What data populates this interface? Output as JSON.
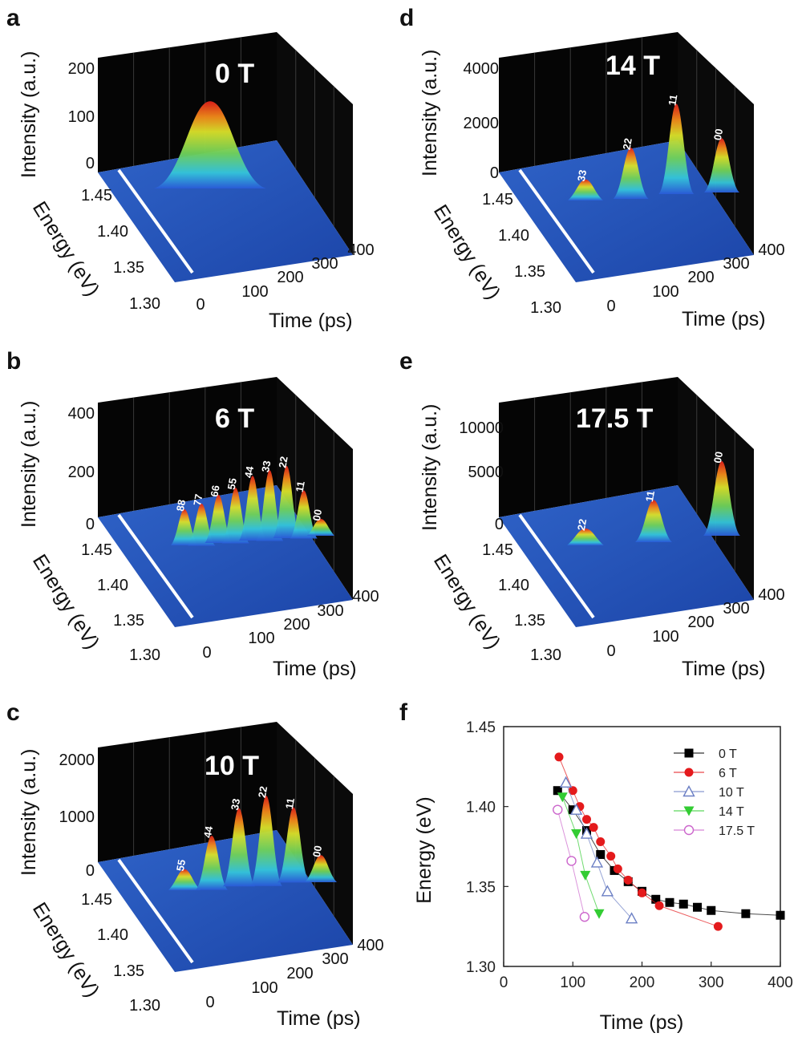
{
  "chart_data": [
    {
      "panel": "a",
      "type": "surface3d",
      "field_label": "0 T",
      "z_label": "Intensity (a.u.)",
      "y_label": "Energy (eV)",
      "x_label": "Time (ps)",
      "z_ticks": [
        "0",
        "100",
        "200"
      ],
      "y_ticks": [
        "1.45",
        "1.40",
        "1.35",
        "1.30"
      ],
      "x_ticks": [
        "0",
        "100",
        "200",
        "300",
        "400"
      ],
      "zlim": [
        0,
        200
      ],
      "peaks": [
        {
          "label": "",
          "time": 60,
          "energy": 1.41,
          "intensity": 125
        }
      ]
    },
    {
      "panel": "b",
      "type": "surface3d",
      "field_label": "6 T",
      "z_label": "Intensity (a.u.)",
      "y_label": "Energy (eV)",
      "x_label": "Time (ps)",
      "z_ticks": [
        "0",
        "200",
        "400"
      ],
      "y_ticks": [
        "1.45",
        "1.40",
        "1.35",
        "1.30"
      ],
      "x_ticks": [
        "0",
        "100",
        "200",
        "300",
        "400"
      ],
      "zlim": [
        0,
        400
      ],
      "peaks": [
        {
          "label": "88",
          "intensity": 80
        },
        {
          "label": "77",
          "intensity": 100
        },
        {
          "label": "66",
          "intensity": 120
        },
        {
          "label": "55",
          "intensity": 145
        },
        {
          "label": "44",
          "intensity": 175
        },
        {
          "label": "33",
          "intensity": 195
        },
        {
          "label": "22",
          "intensity": 200
        },
        {
          "label": "11",
          "intensity": 120
        },
        {
          "label": "00",
          "intensity": 12
        }
      ]
    },
    {
      "panel": "c",
      "type": "surface3d",
      "field_label": "10 T",
      "z_label": "Intensity (a.u.)",
      "y_label": "Energy (eV)",
      "x_label": "Time (ps)",
      "z_ticks": [
        "0",
        "1000",
        "2000"
      ],
      "y_ticks": [
        "1.45",
        "1.40",
        "1.35",
        "1.30"
      ],
      "x_ticks": [
        "0",
        "100",
        "200",
        "300",
        "400"
      ],
      "zlim": [
        0,
        2000
      ],
      "peaks": [
        {
          "label": "55",
          "intensity": 150
        },
        {
          "label": "44",
          "intensity": 700
        },
        {
          "label": "33",
          "intensity": 1100
        },
        {
          "label": "22",
          "intensity": 1300
        },
        {
          "label": "11",
          "intensity": 1050
        },
        {
          "label": "00",
          "intensity": 250
        }
      ]
    },
    {
      "panel": "d",
      "type": "surface3d",
      "field_label": "14 T",
      "z_label": "Intensity (a.u.)",
      "y_label": "Energy (eV)",
      "x_label": "Time (ps)",
      "z_ticks": [
        "0",
        "2000",
        "4000"
      ],
      "y_ticks": [
        "1.45",
        "1.40",
        "1.35",
        "1.30"
      ],
      "x_ticks": [
        "0",
        "100",
        "200",
        "300",
        "400"
      ],
      "zlim": [
        0,
        4000
      ],
      "peaks": [
        {
          "label": "33",
          "intensity": 300
        },
        {
          "label": "22",
          "intensity": 1300
        },
        {
          "label": "11",
          "intensity": 2600
        },
        {
          "label": "00",
          "intensity": 1400
        }
      ]
    },
    {
      "panel": "e",
      "type": "surface3d",
      "field_label": "17.5 T",
      "z_label": "Intensity (a.u.)",
      "y_label": "Energy (eV)",
      "x_label": "Time (ps)",
      "z_ticks": [
        "0",
        "5000",
        "10000"
      ],
      "y_ticks": [
        "1.45",
        "1.40",
        "1.35",
        "1.30"
      ],
      "x_ticks": [
        "0",
        "100",
        "200",
        "300",
        "400"
      ],
      "zlim": [
        0,
        10000
      ],
      "peaks": [
        {
          "label": "22",
          "intensity": 400
        },
        {
          "label": "11",
          "intensity": 2500
        },
        {
          "label": "00",
          "intensity": 5200
        }
      ]
    },
    {
      "panel": "f",
      "type": "scatter",
      "xlabel": "Time (ps)",
      "ylabel": "Energy (eV)",
      "xlim": [
        0,
        400
      ],
      "ylim": [
        1.3,
        1.45
      ],
      "x_ticks": [
        0,
        100,
        200,
        300,
        400
      ],
      "y_ticks": [
        1.3,
        1.35,
        1.4,
        1.45
      ],
      "y_tick_labels": [
        "1.30",
        "1.35",
        "1.40",
        "1.45"
      ],
      "legend_position": "top-right",
      "series": [
        {
          "name": "0 T",
          "color": "#000000",
          "marker": "square",
          "points": [
            [
              78,
              1.41
            ],
            [
              100,
              1.398
            ],
            [
              120,
              1.385
            ],
            [
              140,
              1.37
            ],
            [
              160,
              1.36
            ],
            [
              180,
              1.353
            ],
            [
              200,
              1.347
            ],
            [
              220,
              1.342
            ],
            [
              240,
              1.34
            ],
            [
              260,
              1.339
            ],
            [
              280,
              1.337
            ],
            [
              300,
              1.335
            ],
            [
              350,
              1.333
            ],
            [
              400,
              1.332
            ]
          ]
        },
        {
          "name": "6 T",
          "color": "#e41a1c",
          "marker": "circle",
          "points": [
            [
              80,
              1.431
            ],
            [
              100,
              1.41
            ],
            [
              110,
              1.4
            ],
            [
              120,
              1.392
            ],
            [
              130,
              1.387
            ],
            [
              140,
              1.378
            ],
            [
              155,
              1.369
            ],
            [
              165,
              1.361
            ],
            [
              180,
              1.354
            ],
            [
              200,
              1.346
            ],
            [
              225,
              1.338
            ],
            [
              310,
              1.325
            ]
          ]
        },
        {
          "name": "10 T",
          "color": "#6b7fc4",
          "marker": "triangle-up-open",
          "points": [
            [
              90,
              1.415
            ],
            [
              105,
              1.398
            ],
            [
              120,
              1.383
            ],
            [
              135,
              1.365
            ],
            [
              150,
              1.347
            ],
            [
              185,
              1.33
            ]
          ]
        },
        {
          "name": "14 T",
          "color": "#33cc33",
          "marker": "triangle-down",
          "points": [
            [
              85,
              1.406
            ],
            [
              105,
              1.383
            ],
            [
              118,
              1.357
            ],
            [
              138,
              1.333
            ]
          ]
        },
        {
          "name": "17.5 T",
          "color": "#cc66cc",
          "marker": "circle-open",
          "points": [
            [
              78,
              1.398
            ],
            [
              98,
              1.366
            ],
            [
              117,
              1.331
            ]
          ]
        }
      ]
    }
  ],
  "panel_letters": {
    "a": "a",
    "b": "b",
    "c": "c",
    "d": "d",
    "e": "e",
    "f": "f"
  }
}
